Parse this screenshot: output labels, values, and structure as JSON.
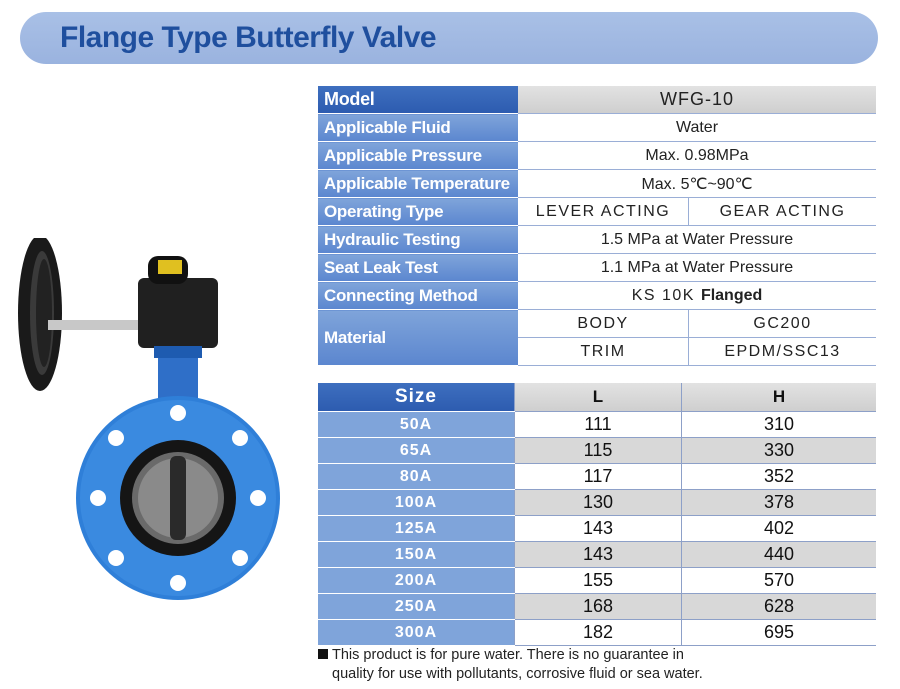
{
  "title": "Flange Type Butterfly Valve",
  "spec": {
    "model_label": "Model",
    "model_value": "WFG-10",
    "fluid_label": "Applicable Fluid",
    "fluid_value": "Water",
    "pressure_label": "Applicable Pressure",
    "pressure_value": "Max. 0.98MPa",
    "temperature_label": "Applicable Temperature",
    "temperature_value": "Max. 5℃~90℃",
    "operating_label": "Operating Type",
    "operating_values": [
      "LEVER ACTING",
      "GEAR ACTING"
    ],
    "hydraulic_label": "Hydraulic Testing",
    "hydraulic_value": "1.5 MPa at Water Pressure",
    "seat_label": "Seat Leak Test",
    "seat_value": "1.1 MPa at Water Pressure",
    "connecting_label": "Connecting Method",
    "connecting_value_prefix": "KS 10K",
    "connecting_value_suffix": "Flanged",
    "material_label": "Material",
    "material_rows": [
      {
        "part": "BODY",
        "value": "GC200"
      },
      {
        "part": "TRIM",
        "value": "EPDM/SSC13"
      }
    ]
  },
  "size_table": {
    "headers": [
      "Size",
      "L",
      "H"
    ],
    "rows": [
      {
        "size": "50A",
        "L": "111",
        "H": "310"
      },
      {
        "size": "65A",
        "L": "115",
        "H": "330"
      },
      {
        "size": "80A",
        "L": "117",
        "H": "352"
      },
      {
        "size": "100A",
        "L": "130",
        "H": "378"
      },
      {
        "size": "125A",
        "L": "143",
        "H": "402"
      },
      {
        "size": "150A",
        "L": "143",
        "H": "440"
      },
      {
        "size": "200A",
        "L": "155",
        "H": "570"
      },
      {
        "size": "250A",
        "L": "168",
        "H": "628"
      },
      {
        "size": "300A",
        "L": "182",
        "H": "695"
      }
    ]
  },
  "note": {
    "line1": "This product is for pure water. There is no guarantee in",
    "line2": "quality for use with pollutants, corrosive fluid or sea water."
  },
  "colors": {
    "title_bar": "#a9c0e6",
    "title_text": "#1f4f9e",
    "label_cell": "#6b93d4",
    "header_cell": "#2d5cb0",
    "valve_body": "#2f7fd8"
  },
  "icons": [
    "butterfly-valve-image",
    "note-square-bullet"
  ]
}
